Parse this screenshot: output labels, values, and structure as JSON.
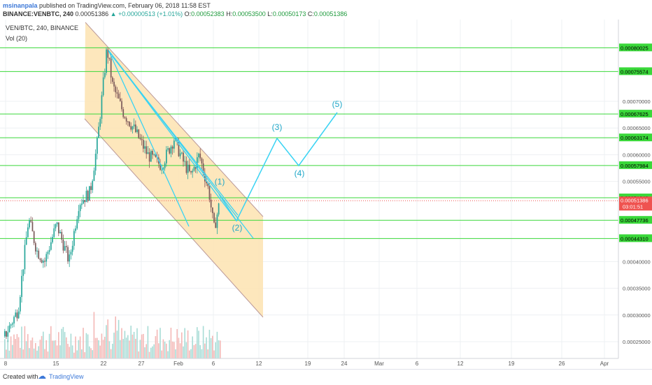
{
  "header": {
    "author": "msinanpala",
    "published": "published on TradingView.com, February 06, 2018 11:58 EST",
    "symbol": "BINANCE:VENBTC, 240",
    "last": "0.00051386",
    "change": "▲ +0.00000513 (+1.01%)",
    "o_label": "O:",
    "o": "0.00052383",
    "h_label": "H:",
    "h": "0.00053500",
    "l_label": "L:",
    "l": "0.00050173",
    "c_label": "C:",
    "c": "0.00051386"
  },
  "legend": {
    "instrument": "VEN/BTC, 240, BINANCE",
    "volume": "Vol (20)"
  },
  "footer": {
    "created_with": "Created with",
    "brand": "TradingView"
  },
  "colors": {
    "up": "#26a69a",
    "down": "#ef5350",
    "candle_body_dark": "#555555",
    "hline": "#3ad83a",
    "wave": "#3ad3f3",
    "channel_fill": "#fde3b0",
    "current_price_box": "#ef5350"
  },
  "chart_data": {
    "type": "candlestick",
    "price_axis": {
      "ticks": [
        "0.00070000",
        "0.00065000",
        "0.00060000",
        "0.00055000",
        "0.00040000",
        "0.00035000",
        "0.00030000",
        "0.00025000"
      ],
      "ylim": [
        0.00022,
        0.00087
      ]
    },
    "time_axis": {
      "ticks": [
        "8",
        "15",
        "22",
        "27",
        "Feb",
        "6",
        "12",
        "19",
        "24",
        "Mar",
        "6",
        "12",
        "19",
        "26",
        "Apr"
      ]
    },
    "horizontal_levels": [
      {
        "label": "0.00080025",
        "value": 0.00080025
      },
      {
        "label": "0.00075574",
        "value": 0.00075574
      },
      {
        "label": "0.00067625",
        "value": 0.00067625
      },
      {
        "label": "0.00063174",
        "value": 0.00063174
      },
      {
        "label": "0.00057984",
        "value": 0.00057984
      },
      {
        "label": "0.00051940",
        "value": 0.0005194
      },
      {
        "label": "0.00047736",
        "value": 0.00047736
      },
      {
        "label": "0.00044310",
        "value": 0.0004431
      }
    ],
    "current_price": {
      "label": "0.00051386",
      "value": 0.00051386,
      "countdown": "03:01:51"
    },
    "wave_labels": [
      "(1)",
      "(2)",
      "(3)",
      "(4)",
      "(5)"
    ],
    "wave_path": [
      {
        "label": "(1)",
        "x": "Feb 6",
        "y": 0.00053
      },
      {
        "label": "(2)",
        "x": "Feb 8",
        "y": 0.000475
      },
      {
        "label": "(3)",
        "x": "Feb 16",
        "y": 0.000633
      },
      {
        "label": "(4)",
        "x": "Feb 19",
        "y": 0.000578
      },
      {
        "label": "(5)",
        "x": "Feb 24",
        "y": 0.000676
      }
    ]
  }
}
